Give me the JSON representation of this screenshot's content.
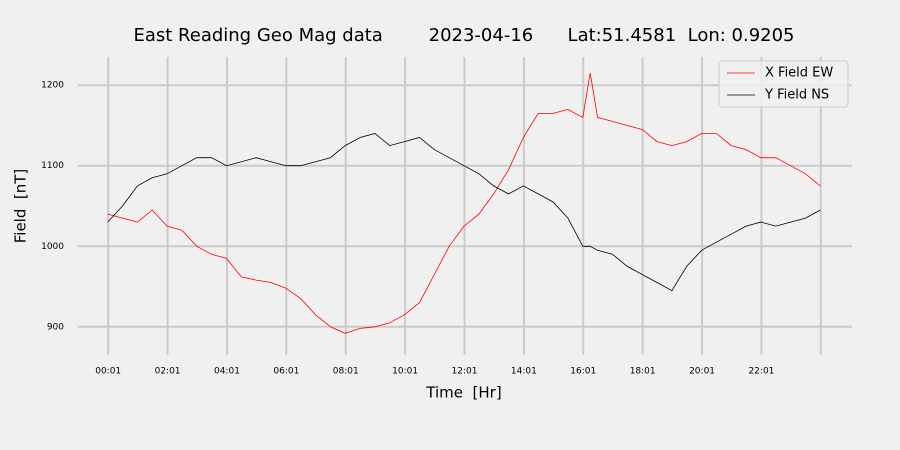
{
  "chart_data": {
    "type": "line",
    "title": "East Reading Geo Mag data        2023-04-16      Lat:51.4581  Lon: 0.9205",
    "x_label": "Time  [Hr]",
    "y_label": "Field  [nT]",
    "x": [
      0,
      30,
      60,
      90,
      120,
      150,
      180,
      210,
      240,
      270,
      300,
      330,
      360,
      390,
      420,
      450,
      480,
      510,
      540,
      570,
      600,
      630,
      660,
      690,
      720,
      750,
      780,
      810,
      840,
      870,
      900,
      930,
      960,
      975,
      990,
      1020,
      1050,
      1080,
      1110,
      1140,
      1170,
      1200,
      1230,
      1260,
      1290,
      1320,
      1350,
      1380,
      1410,
      1440
    ],
    "series": [
      {
        "name": "X Field EW",
        "color": "#ff0000",
        "values": [
          1040,
          1035,
          1030,
          1045,
          1025,
          1020,
          1000,
          990,
          985,
          962,
          958,
          955,
          948,
          935,
          915,
          900,
          892,
          898,
          900,
          905,
          915,
          930,
          965,
          1000,
          1025,
          1040,
          1065,
          1095,
          1135,
          1165,
          1165,
          1170,
          1160,
          1215,
          1160,
          1155,
          1150,
          1145,
          1130,
          1125,
          1130,
          1140,
          1140,
          1125,
          1120,
          1110,
          1110,
          1100,
          1090,
          1075
        ]
      },
      {
        "name": "Y Field NS",
        "color": "#000000",
        "values": [
          1030,
          1050,
          1075,
          1085,
          1090,
          1100,
          1110,
          1110,
          1100,
          1105,
          1110,
          1105,
          1100,
          1100,
          1105,
          1110,
          1125,
          1135,
          1140,
          1125,
          1130,
          1135,
          1120,
          1110,
          1100,
          1090,
          1075,
          1065,
          1075,
          1065,
          1055,
          1035,
          1000,
          1000,
          995,
          990,
          975,
          965,
          955,
          945,
          975,
          995,
          1005,
          1015,
          1025,
          1030,
          1025,
          1030,
          1035,
          1045
        ]
      }
    ],
    "xlim": [
      -60,
      1504
    ],
    "xticks": [
      {
        "value": 1,
        "label": "00:01"
      },
      {
        "value": 121,
        "label": "02:01"
      },
      {
        "value": 241,
        "label": "04:01"
      },
      {
        "value": 361,
        "label": "06:01"
      },
      {
        "value": 481,
        "label": "08:01"
      },
      {
        "value": 601,
        "label": "10:01"
      },
      {
        "value": 721,
        "label": "12:01"
      },
      {
        "value": 841,
        "label": "14:01"
      },
      {
        "value": 961,
        "label": "16:01"
      },
      {
        "value": 1081,
        "label": "18:01"
      },
      {
        "value": 1201,
        "label": "20:01"
      },
      {
        "value": 1321,
        "label": "22:01"
      },
      1441
    ],
    "ylim": [
      865,
      1235
    ],
    "yticks": [
      900,
      1000,
      1100,
      1200
    ],
    "grid": true,
    "legend": "upper right"
  }
}
